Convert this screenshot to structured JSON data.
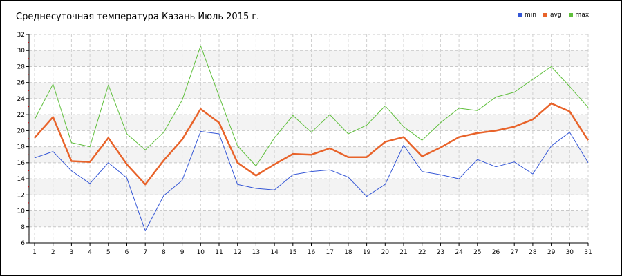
{
  "chart_data": {
    "type": "line",
    "title": "Среднесуточная температура Казань  Июль 2015 г.",
    "xlabel": "",
    "ylabel": "",
    "x": [
      1,
      2,
      3,
      4,
      5,
      6,
      7,
      8,
      9,
      10,
      11,
      12,
      13,
      14,
      15,
      16,
      17,
      18,
      19,
      20,
      21,
      22,
      23,
      24,
      25,
      26,
      27,
      28,
      29,
      30,
      31
    ],
    "ylim": [
      6,
      32
    ],
    "yticks": [
      6,
      8,
      10,
      12,
      14,
      16,
      18,
      20,
      22,
      24,
      26,
      28,
      30,
      32
    ],
    "grid": true,
    "legend_position": "top-right",
    "series": [
      {
        "name": "min",
        "color": "#3557d6",
        "values": [
          16.6,
          17.4,
          15.0,
          13.4,
          16.0,
          14.1,
          7.5,
          11.9,
          13.8,
          19.9,
          19.6,
          13.3,
          12.8,
          12.6,
          14.5,
          14.9,
          15.1,
          14.2,
          11.8,
          13.3,
          18.2,
          14.9,
          14.5,
          14.0,
          16.4,
          15.5,
          16.1,
          14.6,
          18.1,
          19.8,
          16.0
        ]
      },
      {
        "name": "avg",
        "color": "#e8632a",
        "values": [
          19.1,
          21.7,
          16.2,
          16.1,
          19.1,
          15.8,
          13.3,
          16.3,
          18.9,
          22.7,
          21.0,
          16.0,
          14.4,
          15.8,
          17.1,
          17.0,
          17.8,
          16.7,
          16.7,
          18.6,
          19.2,
          16.8,
          17.9,
          19.2,
          19.7,
          20.0,
          20.5,
          21.4,
          23.4,
          22.4,
          18.8
        ]
      },
      {
        "name": "max",
        "color": "#5fbf3c",
        "values": [
          21.4,
          25.8,
          18.5,
          18.0,
          25.7,
          19.6,
          17.6,
          19.8,
          23.8,
          30.6,
          24.3,
          18.1,
          15.6,
          19.1,
          21.9,
          19.8,
          22.0,
          19.6,
          20.7,
          23.1,
          20.5,
          18.8,
          21.0,
          22.8,
          22.5,
          24.2,
          24.8,
          26.4,
          28.0,
          25.5,
          22.9
        ]
      }
    ]
  }
}
